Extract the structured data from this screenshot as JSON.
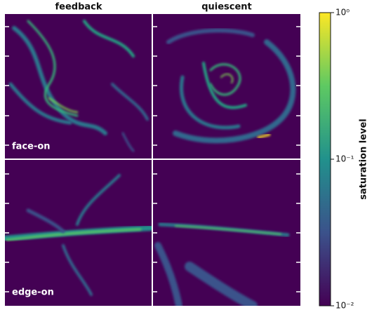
{
  "chart_data": {
    "type": "image-grid",
    "column_titles": [
      "feedback",
      "quiescent"
    ],
    "row_labels": [
      "face-on",
      "edge-on"
    ],
    "colorbar": {
      "label": "saturation level",
      "log": true,
      "lim": [
        0.01,
        1
      ],
      "ticks": [
        {
          "value": 0.01,
          "label": "10⁻²"
        },
        {
          "value": 0.1,
          "label": "10⁻¹"
        },
        {
          "value": 1,
          "label": "10⁰"
        }
      ],
      "colormap": [
        "#440154",
        "#3b528b",
        "#21918c",
        "#5ec962",
        "#fde725"
      ]
    }
  }
}
